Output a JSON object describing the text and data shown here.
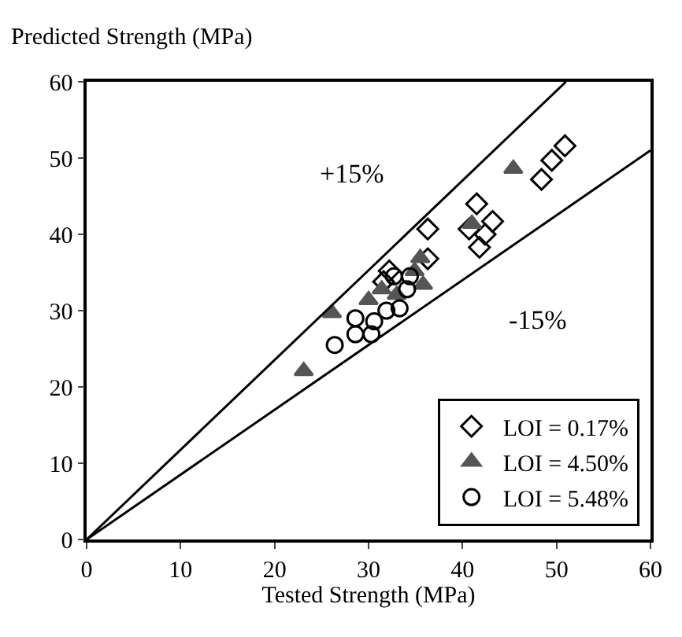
{
  "chart_data": {
    "type": "scatter",
    "xlabel": "Tested Strength (MPa)",
    "ylabel": "Predicted Strength (MPa)",
    "xlim": [
      0,
      60
    ],
    "xticks": [
      0,
      10,
      20,
      30,
      40,
      50,
      60
    ],
    "ylim": [
      0,
      60
    ],
    "yticks": [
      0,
      10,
      20,
      30,
      40,
      50,
      60
    ],
    "legend": "bottom right",
    "series": [
      {
        "name": "LOI = 0.17%",
        "color": "#000000",
        "marker": "diamond",
        "x": [
          36.3,
          36.3,
          32.2,
          31.6,
          41.5,
          43.2,
          40.7,
          42.4,
          41.8,
          50.9,
          49.5,
          48.4
        ],
        "values": [
          40.7,
          36.8,
          35.2,
          33.8,
          44.0,
          41.7,
          40.7,
          40.0,
          38.3,
          51.6,
          49.7,
          47.2
        ]
      },
      {
        "name": "LOI = 4.50%",
        "color": "#555555",
        "marker": "triangle",
        "x": [
          23.1,
          26.1,
          30.0,
          31.4,
          33.0,
          34.9,
          35.5,
          35.8,
          45.4,
          41.0
        ],
        "values": [
          22.1,
          29.7,
          31.4,
          32.8,
          32.1,
          35.2,
          36.9,
          33.4,
          48.6,
          41.4
        ]
      },
      {
        "name": "LOI = 5.48%",
        "color": "#000000",
        "marker": "circle",
        "x": [
          26.4,
          28.6,
          28.6,
          30.3,
          30.6,
          31.9,
          33.3,
          34.4,
          34.1,
          32.7
        ],
        "values": [
          25.5,
          26.9,
          29.0,
          26.9,
          28.6,
          30.0,
          30.3,
          34.5,
          32.8,
          34.5
        ]
      },
      {
        "type": "line",
        "color": "#000000",
        "x": [
          0,
          51
        ],
        "values": [
          0,
          60
        ]
      },
      {
        "type": "line",
        "color": "#000000",
        "x": [
          0,
          60
        ],
        "values": [
          0,
          51
        ]
      }
    ],
    "annotations": [
      "+15%",
      "-15%"
    ]
  }
}
